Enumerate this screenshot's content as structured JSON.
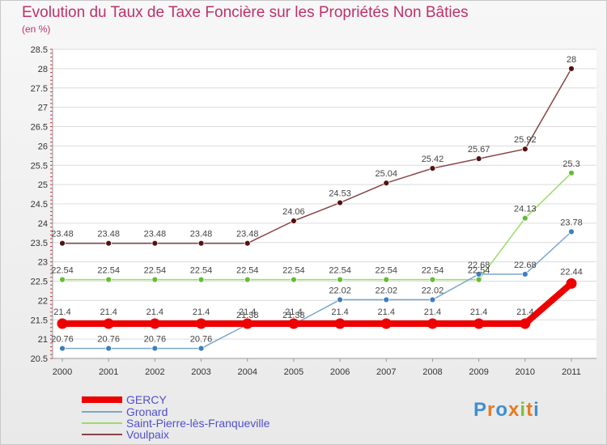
{
  "title": "Evolution du Taux de Taxe Foncière sur les Propriétés Non Bâties",
  "unit_label": "(en %)",
  "logo": {
    "text": "Proxiti"
  },
  "chart_data": {
    "type": "line",
    "title": "Evolution du Taux de Taxe Foncière sur les Propriétés Non Bâties",
    "ylabel": "(en %)",
    "xlabel": "",
    "ylim": [
      20.5,
      28.5
    ],
    "ytick_step": 0.5,
    "grid": "horizontal",
    "x": [
      "2000",
      "2001",
      "2002",
      "2003",
      "2004",
      "2005",
      "2006",
      "2007",
      "2008",
      "2009",
      "2010",
      "2011"
    ],
    "series": [
      {
        "name": "GERCY",
        "color": "#ee0000",
        "marker": "#ee0000",
        "emphasis": true,
        "values": [
          21.4,
          21.4,
          21.4,
          21.4,
          21.4,
          21.4,
          21.4,
          21.4,
          21.4,
          21.4,
          21.4,
          22.44
        ],
        "labels": [
          "21.4",
          "21.4",
          "21.4",
          "21.4",
          "21.4",
          "21.4",
          "21.4",
          "21.4",
          "21.4",
          "21.4",
          "21.4",
          "22.44"
        ]
      },
      {
        "name": "Gronard",
        "color": "#7aa6cc",
        "marker": "#3d7ebf",
        "emphasis": false,
        "values": [
          20.76,
          20.76,
          20.76,
          20.76,
          21.38,
          21.38,
          22.02,
          22.02,
          22.02,
          22.68,
          22.68,
          23.78
        ],
        "labels": [
          "20.76",
          "20.76",
          "20.76",
          "20.76",
          "21.38",
          "21.38",
          "22.02",
          "22.02",
          "22.02",
          "22.68",
          "22.68",
          "23.78"
        ]
      },
      {
        "name": "Saint-Pierre-lès-Franqueville",
        "color": "#99dd66",
        "marker": "#66bb33",
        "emphasis": false,
        "values": [
          22.54,
          22.54,
          22.54,
          22.54,
          22.54,
          22.54,
          22.54,
          22.54,
          22.54,
          22.54,
          24.13,
          25.3
        ],
        "labels": [
          "22.54",
          "22.54",
          "22.54",
          "22.54",
          "22.54",
          "22.54",
          "22.54",
          "22.54",
          "22.54",
          "22.54",
          "24.13",
          "25.3"
        ]
      },
      {
        "name": "Voulpaix",
        "color": "#884444",
        "marker": "#551111",
        "emphasis": false,
        "values": [
          23.48,
          23.48,
          23.48,
          23.48,
          23.48,
          24.06,
          24.53,
          25.04,
          25.42,
          25.67,
          25.92,
          28
        ],
        "labels": [
          "23.48",
          "23.48",
          "23.48",
          "23.48",
          "23.48",
          "24.06",
          "24.53",
          "25.04",
          "25.42",
          "25.67",
          "25.92",
          "28"
        ]
      }
    ],
    "legend": {
      "position": "bottom-left"
    }
  }
}
